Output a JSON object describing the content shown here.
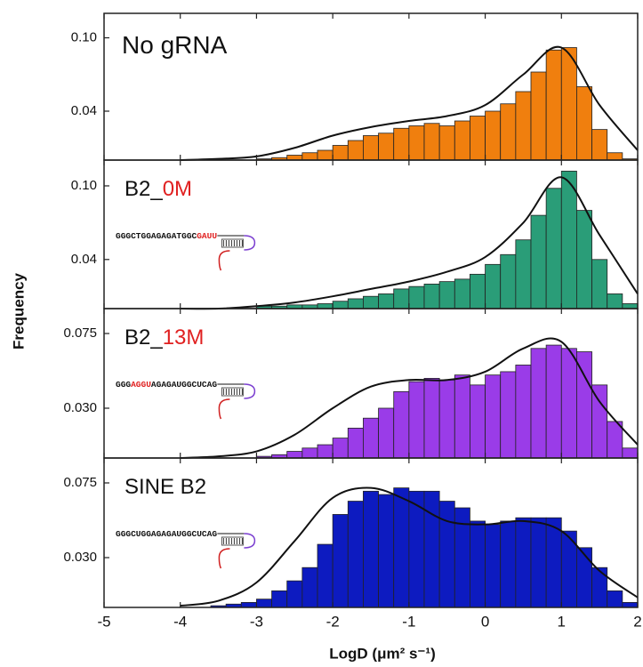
{
  "chart_data": [
    {
      "type": "histogram",
      "ylabel": "Frequency",
      "label": [
        {
          "text": "No gRNA",
          "color": "#111111"
        }
      ],
      "color": "#f07f0e",
      "ylim": [
        0,
        0.12
      ],
      "yticks": [
        0.04,
        {
          "value": 0.1,
          "label": "0.10"
        }
      ],
      "bins": [
        -3.0,
        -2.8,
        -2.6,
        -2.4,
        -2.2,
        -2.0,
        -1.8,
        -1.6,
        -1.4,
        -1.2,
        -1.0,
        -0.8,
        -0.6,
        -0.4,
        -0.2,
        0.0,
        0.2,
        0.4,
        0.6,
        0.8,
        1.0,
        1.2,
        1.4,
        1.6,
        1.8,
        2.0
      ],
      "values": [
        0.001,
        0.002,
        0.004,
        0.006,
        0.008,
        0.012,
        0.016,
        0.02,
        0.022,
        0.026,
        0.028,
        0.03,
        0.028,
        0.032,
        0.036,
        0.04,
        0.046,
        0.056,
        0.072,
        0.09,
        0.092,
        0.06,
        0.025,
        0.006,
        0.001
      ],
      "fit_x": [
        -4,
        -3.5,
        -3,
        -2.5,
        -2,
        -1.5,
        -1,
        -0.5,
        0,
        0.5,
        1,
        1.5,
        2
      ],
      "fit_y": [
        0,
        0.001,
        0.003,
        0.01,
        0.02,
        0.027,
        0.032,
        0.036,
        0.045,
        0.07,
        0.092,
        0.045,
        0.008
      ]
    },
    {
      "type": "histogram",
      "label": [
        {
          "text": "B2_",
          "color": "#111111"
        },
        {
          "text": "0M",
          "color": "#e02020"
        }
      ],
      "sequence": [
        {
          "text": "GGGCTGGAGAGATGGC",
          "color": "#111111"
        },
        {
          "text": "GAUU",
          "color": "#e02020"
        }
      ],
      "color": "#2a9d78",
      "ylim": [
        0,
        0.121
      ],
      "yticks": [
        0.04,
        {
          "value": 0.1,
          "label": "0.10"
        }
      ],
      "bins": [
        -3.0,
        -2.8,
        -2.6,
        -2.4,
        -2.2,
        -2.0,
        -1.8,
        -1.6,
        -1.4,
        -1.2,
        -1.0,
        -0.8,
        -0.6,
        -0.4,
        -0.2,
        0.0,
        0.2,
        0.4,
        0.6,
        0.8,
        1.0,
        1.2,
        1.4,
        1.6,
        1.8,
        2.0
      ],
      "values": [
        0.002,
        0.002,
        0.003,
        0.003,
        0.004,
        0.006,
        0.008,
        0.01,
        0.012,
        0.016,
        0.018,
        0.02,
        0.022,
        0.024,
        0.028,
        0.036,
        0.044,
        0.056,
        0.076,
        0.098,
        0.112,
        0.08,
        0.04,
        0.012,
        0.004
      ],
      "fit_x": [
        -4,
        -3.5,
        -3,
        -2.5,
        -2,
        -1.5,
        -1,
        -0.5,
        0,
        0.5,
        1,
        1.5,
        2
      ],
      "fit_y": [
        0,
        0,
        0.002,
        0.005,
        0.01,
        0.016,
        0.022,
        0.03,
        0.042,
        0.07,
        0.107,
        0.06,
        0.012
      ]
    },
    {
      "type": "histogram",
      "label": [
        {
          "text": "B2_",
          "color": "#111111"
        },
        {
          "text": "13M",
          "color": "#e02020"
        }
      ],
      "sequence": [
        {
          "text": "GGG",
          "color": "#111111"
        },
        {
          "text": "AGGU",
          "color": "#e02020"
        },
        {
          "text": "AGAGAUGGCUCAG",
          "color": "#111111"
        }
      ],
      "color": "#9a3ce8",
      "ylim": [
        0,
        0.09
      ],
      "yticks": [
        {
          "value": 0.03,
          "label": "0.030"
        },
        0.075
      ],
      "bins": [
        -3.0,
        -2.8,
        -2.6,
        -2.4,
        -2.2,
        -2.0,
        -1.8,
        -1.6,
        -1.4,
        -1.2,
        -1.0,
        -0.8,
        -0.6,
        -0.4,
        -0.2,
        0.0,
        0.2,
        0.4,
        0.6,
        0.8,
        1.0,
        1.2,
        1.4,
        1.6,
        1.8,
        2.0
      ],
      "values": [
        0.001,
        0.002,
        0.004,
        0.006,
        0.008,
        0.012,
        0.018,
        0.024,
        0.03,
        0.04,
        0.046,
        0.048,
        0.047,
        0.05,
        0.044,
        0.05,
        0.052,
        0.056,
        0.066,
        0.068,
        0.066,
        0.064,
        0.044,
        0.022,
        0.006
      ],
      "fit_x": [
        -4,
        -3.5,
        -3,
        -2.5,
        -2,
        -1.5,
        -1,
        -0.5,
        0,
        0.5,
        1,
        1.5,
        2
      ],
      "fit_y": [
        0,
        0.001,
        0.004,
        0.014,
        0.03,
        0.043,
        0.047,
        0.047,
        0.052,
        0.066,
        0.07,
        0.034,
        0.008
      ]
    },
    {
      "type": "histogram",
      "label": [
        {
          "text": "SINE B2",
          "color": "#111111"
        }
      ],
      "sequence": [
        {
          "text": "GGGCUGGAGAGAUGGCUCAG",
          "color": "#111111"
        }
      ],
      "color": "#0d1bc0",
      "ylim": [
        0,
        0.09
      ],
      "yticks": [
        {
          "value": 0.03,
          "label": "0.030"
        },
        0.075
      ],
      "bins": [
        -3.6,
        -3.4,
        -3.2,
        -3.0,
        -2.8,
        -2.6,
        -2.4,
        -2.2,
        -2.0,
        -1.8,
        -1.6,
        -1.4,
        -1.2,
        -1.0,
        -0.8,
        -0.6,
        -0.4,
        -0.2,
        0.0,
        0.2,
        0.4,
        0.6,
        0.8,
        1.0,
        1.2,
        1.4,
        1.6,
        1.8,
        2.0
      ],
      "values": [
        0.001,
        0.002,
        0.003,
        0.005,
        0.01,
        0.016,
        0.024,
        0.038,
        0.056,
        0.064,
        0.07,
        0.068,
        0.072,
        0.07,
        0.07,
        0.064,
        0.06,
        0.052,
        0.05,
        0.052,
        0.054,
        0.054,
        0.054,
        0.046,
        0.036,
        0.024,
        0.01,
        0.003
      ],
      "fit_x": [
        -4,
        -3.5,
        -3,
        -2.5,
        -2,
        -1.5,
        -1,
        -0.5,
        0,
        0.5,
        1,
        1.5,
        2
      ],
      "fit_y": [
        0.001,
        0.004,
        0.015,
        0.04,
        0.066,
        0.072,
        0.064,
        0.052,
        0.05,
        0.052,
        0.046,
        0.022,
        0.006
      ],
      "xlabel": "LogD (μm² s⁻¹)",
      "xlim": [
        -5,
        2
      ],
      "xticks": [
        -5,
        -4,
        -3,
        -2,
        -1,
        0,
        1,
        2
      ]
    }
  ]
}
